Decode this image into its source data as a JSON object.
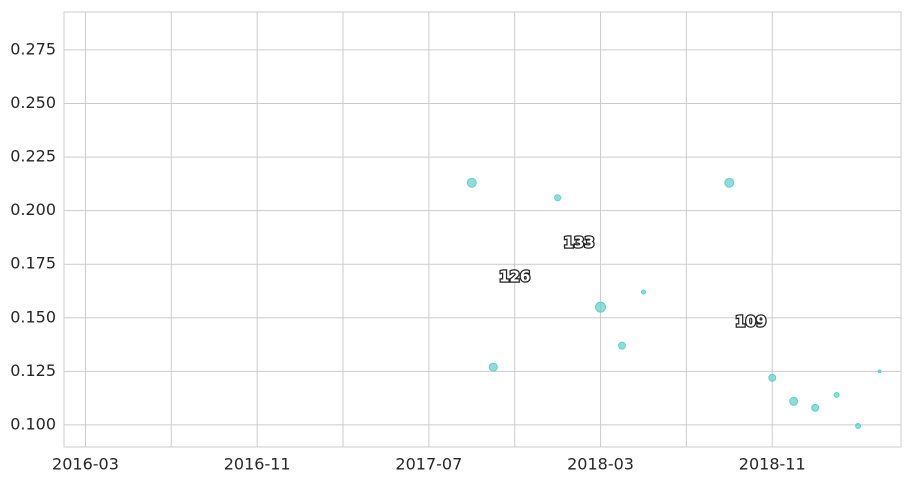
{
  "chart_data": {
    "type": "scatter",
    "x": [
      "2017-09",
      "2017-10",
      "2018-01",
      "2018-03",
      "2018-04",
      "2018-05",
      "2018-09",
      "2018-11",
      "2018-12",
      "2019-01",
      "2019-02",
      "2019-03",
      "2019-04"
    ],
    "values": [
      0.213,
      0.127,
      0.206,
      0.155,
      0.137,
      0.162,
      0.213,
      0.122,
      0.111,
      0.108,
      0.114,
      0.0995,
      0.125
    ],
    "sizes": [
      20,
      16,
      9,
      25,
      12,
      4,
      20,
      12,
      16,
      12,
      6,
      6,
      2
    ],
    "color": "#5fcfcb",
    "xlim": [
      "2016-02",
      "2019-05"
    ],
    "xticks": [
      "2016-03",
      "2016-11",
      "2017-07",
      "2018-03",
      "2018-11"
    ],
    "ylim": [
      0.0897,
      0.2927
    ],
    "yticks": [
      {
        "value": 0.1,
        "label": "0.100"
      },
      {
        "value": 0.125,
        "label": "0.125"
      },
      {
        "value": 0.15,
        "label": "0.150"
      },
      {
        "value": 0.175,
        "label": "0.175"
      },
      {
        "value": 0.2,
        "label": "0.200"
      },
      {
        "value": 0.225,
        "label": "0.225"
      },
      {
        "value": 0.25,
        "label": "0.250"
      },
      {
        "value": 0.275,
        "label": "0.275"
      }
    ],
    "grid": true,
    "annotations": [
      {
        "text": "133",
        "x": "2018-02",
        "y": 0.185
      },
      {
        "text": "126",
        "x": "2017-11",
        "y": 0.169
      },
      {
        "text": "109",
        "x": "2018-10",
        "y": 0.148
      }
    ]
  }
}
